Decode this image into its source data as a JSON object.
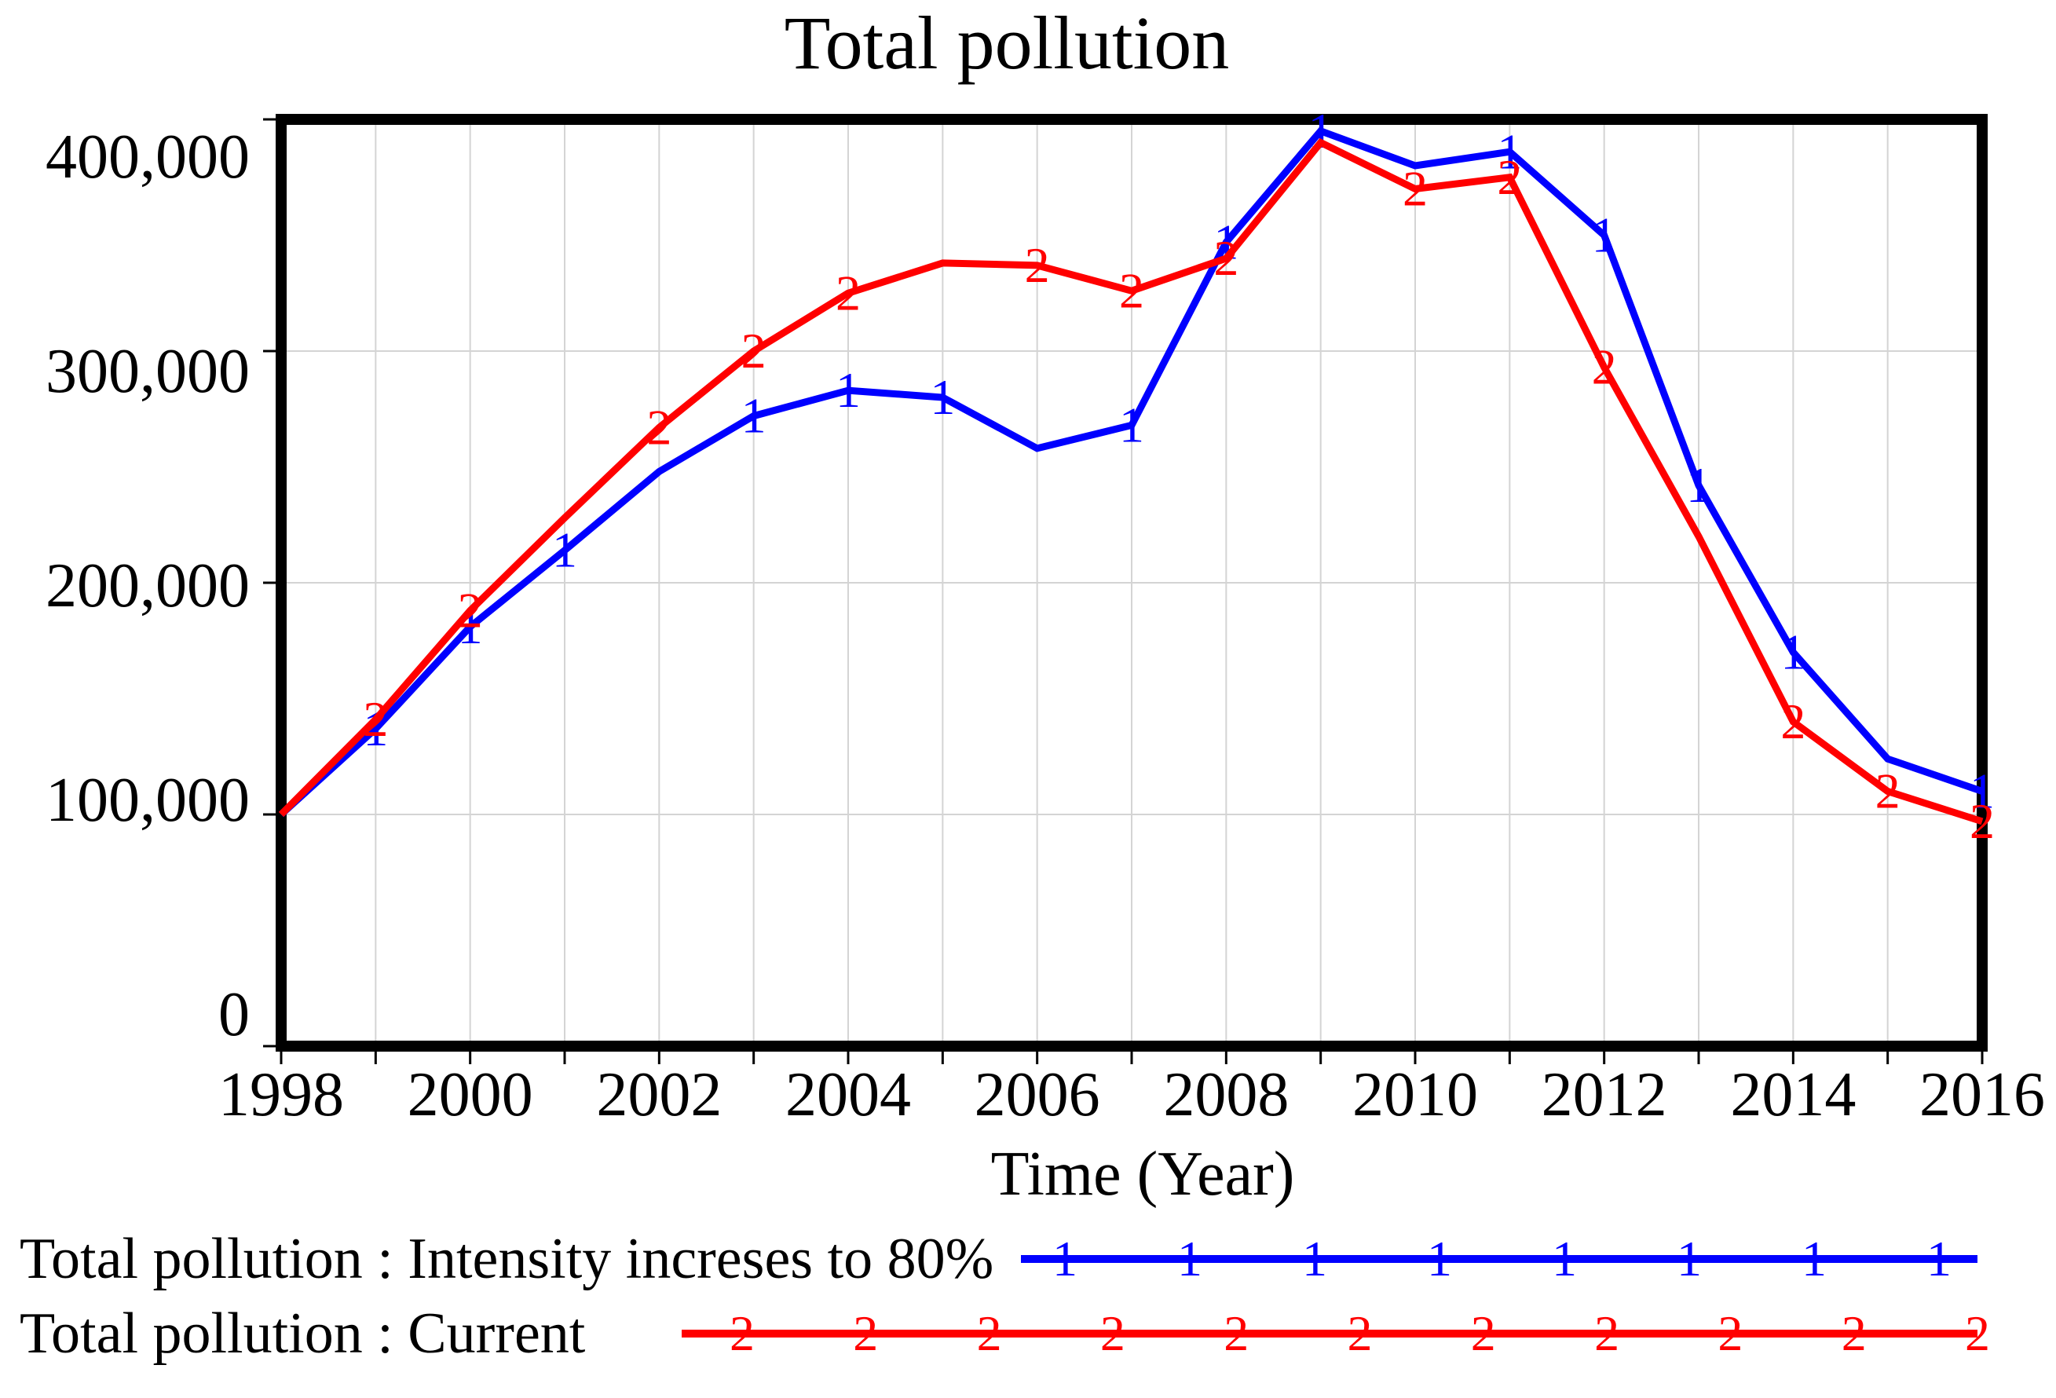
{
  "title": "Total pollution",
  "chart_data": {
    "type": "line",
    "title": "Total pollution",
    "xlabel": "Time (Year)",
    "ylabel": "",
    "xlim": [
      1998,
      2016
    ],
    "ylim": [
      0,
      400000
    ],
    "grid": true,
    "x_tick_labels": [
      "1998",
      "2000",
      "2002",
      "2004",
      "2006",
      "2008",
      "2010",
      "2012",
      "2014",
      "2016"
    ],
    "y_tick_labels": [
      "0",
      "100,000",
      "200,000",
      "300,000",
      "400,000"
    ],
    "y_tick_values": [
      0,
      100000,
      200000,
      300000,
      400000
    ],
    "x": [
      1998,
      1999,
      2000,
      2001,
      2002,
      2003,
      2004,
      2005,
      2006,
      2007,
      2008,
      2009,
      2010,
      2011,
      2012,
      2013,
      2014,
      2015,
      2016
    ],
    "series": [
      {
        "name": "Total pollution : Intensity increses to 80%",
        "color": "#0000ff",
        "marker": "1",
        "values": [
          100000,
          137000,
          181000,
          214000,
          248000,
          272000,
          283000,
          280000,
          258000,
          268000,
          347000,
          395000,
          380000,
          386000,
          350000,
          242000,
          170000,
          124000,
          110000
        ],
        "marker_years": [
          1999,
          2000,
          2001,
          2003,
          2004,
          2005,
          2007,
          2008,
          2009,
          2011,
          2012,
          2013,
          2014,
          2016
        ]
      },
      {
        "name": "Total pollution : Current",
        "color": "#ff0000",
        "marker": "2",
        "values": [
          100000,
          141000,
          188000,
          228000,
          267000,
          300000,
          325000,
          338000,
          337000,
          326000,
          340000,
          390000,
          370000,
          375000,
          293000,
          220000,
          140000,
          110000,
          97000
        ],
        "marker_years": [
          1999,
          2000,
          2002,
          2003,
          2004,
          2006,
          2007,
          2008,
          2010,
          2011,
          2012,
          2014,
          2015,
          2016
        ]
      }
    ],
    "legend_position": "bottom-left",
    "colors": {
      "grid": "#d4d4d4",
      "frame": "#000000",
      "text": "#000000"
    }
  }
}
